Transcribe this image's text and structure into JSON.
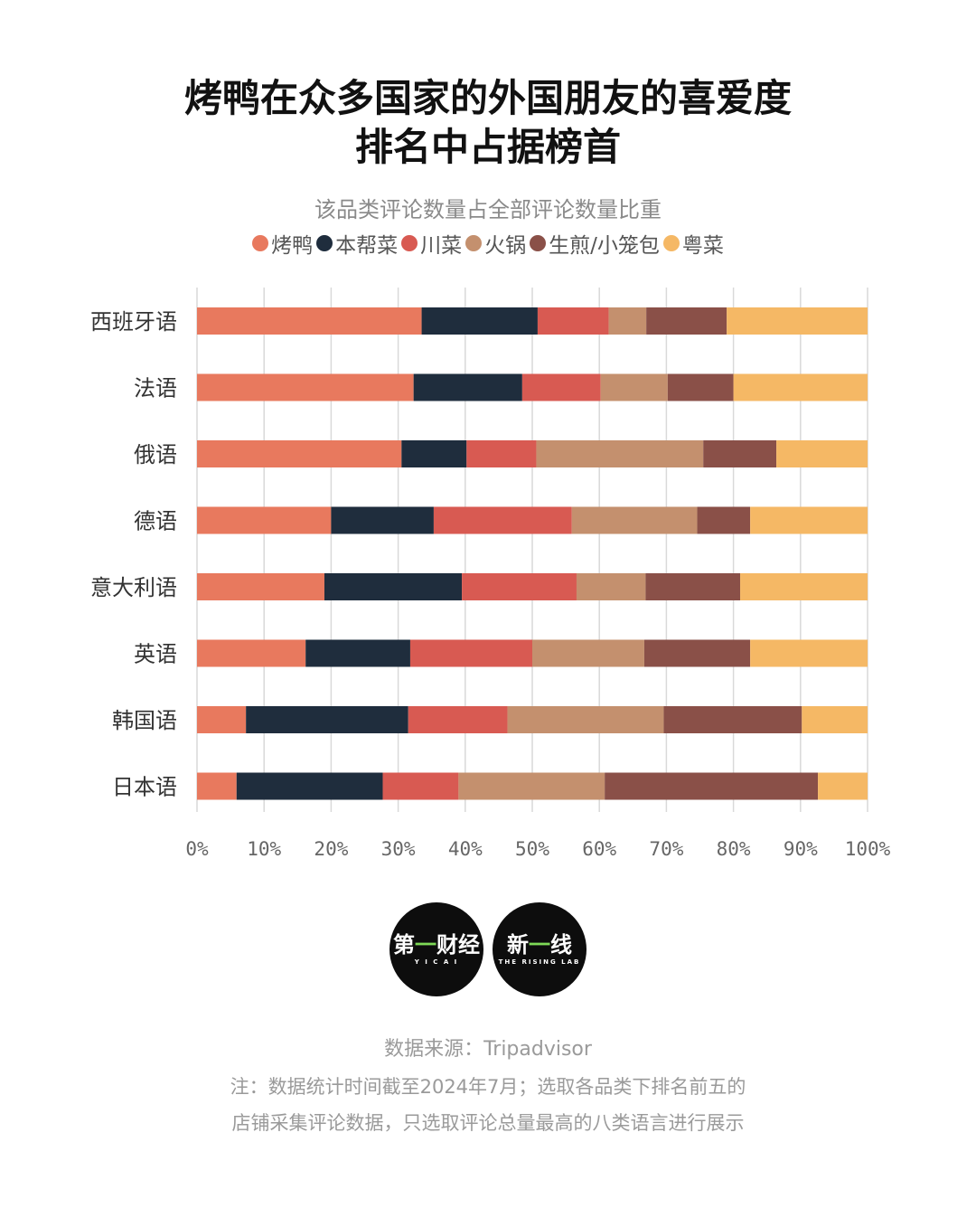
{
  "title_lines": [
    "烤鸭在众多国家的外国朋友的喜爱度",
    "排名中占据榜首"
  ],
  "subtitle": "该品类评论数量占全部评论数量比重",
  "legend": [
    {
      "label": "烤鸭",
      "color": "#E8795E"
    },
    {
      "label": "本帮菜",
      "color": "#1F2D3D"
    },
    {
      "label": "川菜",
      "color": "#D85A52"
    },
    {
      "label": "火锅",
      "color": "#C4906E"
    },
    {
      "label": "生煎/小笼包",
      "color": "#8A5048"
    },
    {
      "label": "粤菜",
      "color": "#F5B865"
    }
  ],
  "chart_data": {
    "type": "bar",
    "orientation": "horizontal",
    "stacked": true,
    "categories": [
      "西班牙语",
      "法语",
      "俄语",
      "德语",
      "意大利语",
      "英语",
      "韩国语",
      "日本语"
    ],
    "series": [
      {
        "name": "烤鸭",
        "color": "#E8795E",
        "values": [
          33.5,
          32.3,
          30.5,
          20.0,
          19.0,
          16.2,
          7.3,
          5.9
        ]
      },
      {
        "name": "本帮菜",
        "color": "#1F2D3D",
        "values": [
          17.3,
          16.2,
          9.7,
          15.3,
          20.5,
          15.6,
          24.2,
          21.8
        ]
      },
      {
        "name": "川菜",
        "color": "#D85A52",
        "values": [
          10.6,
          11.7,
          10.4,
          20.6,
          17.1,
          18.2,
          14.8,
          11.3
        ]
      },
      {
        "name": "火锅",
        "color": "#C4906E",
        "values": [
          5.6,
          10.0,
          24.9,
          18.7,
          10.3,
          16.7,
          23.3,
          21.8
        ]
      },
      {
        "name": "生煎/小笼包",
        "color": "#8A5048",
        "values": [
          12.0,
          9.8,
          10.9,
          7.9,
          14.1,
          15.8,
          20.6,
          31.8
        ]
      },
      {
        "name": "粤菜",
        "color": "#F5B865",
        "values": [
          21.0,
          20.0,
          13.6,
          17.5,
          19.0,
          17.5,
          9.8,
          7.4
        ]
      }
    ],
    "xlim": [
      0,
      100
    ],
    "xticks": [
      "0%",
      "10%",
      "20%",
      "30%",
      "40%",
      "50%",
      "60%",
      "70%",
      "80%",
      "90%",
      "100%"
    ],
    "grid": true
  },
  "logos": [
    {
      "main_a": "第",
      "main_b": "一",
      "main_c": "财经",
      "sub": "Y I C A I"
    },
    {
      "main_a": "新",
      "main_b": "一",
      "main_c": "线",
      "sub": "THE RISING LAB"
    }
  ],
  "source": "数据来源：Tripadvisor",
  "note_lines": [
    "注：数据统计时间截至2024年7月；选取各品类下排名前五的",
    "店铺采集评论数据，只选取评论总量最高的八类语言进行展示"
  ]
}
